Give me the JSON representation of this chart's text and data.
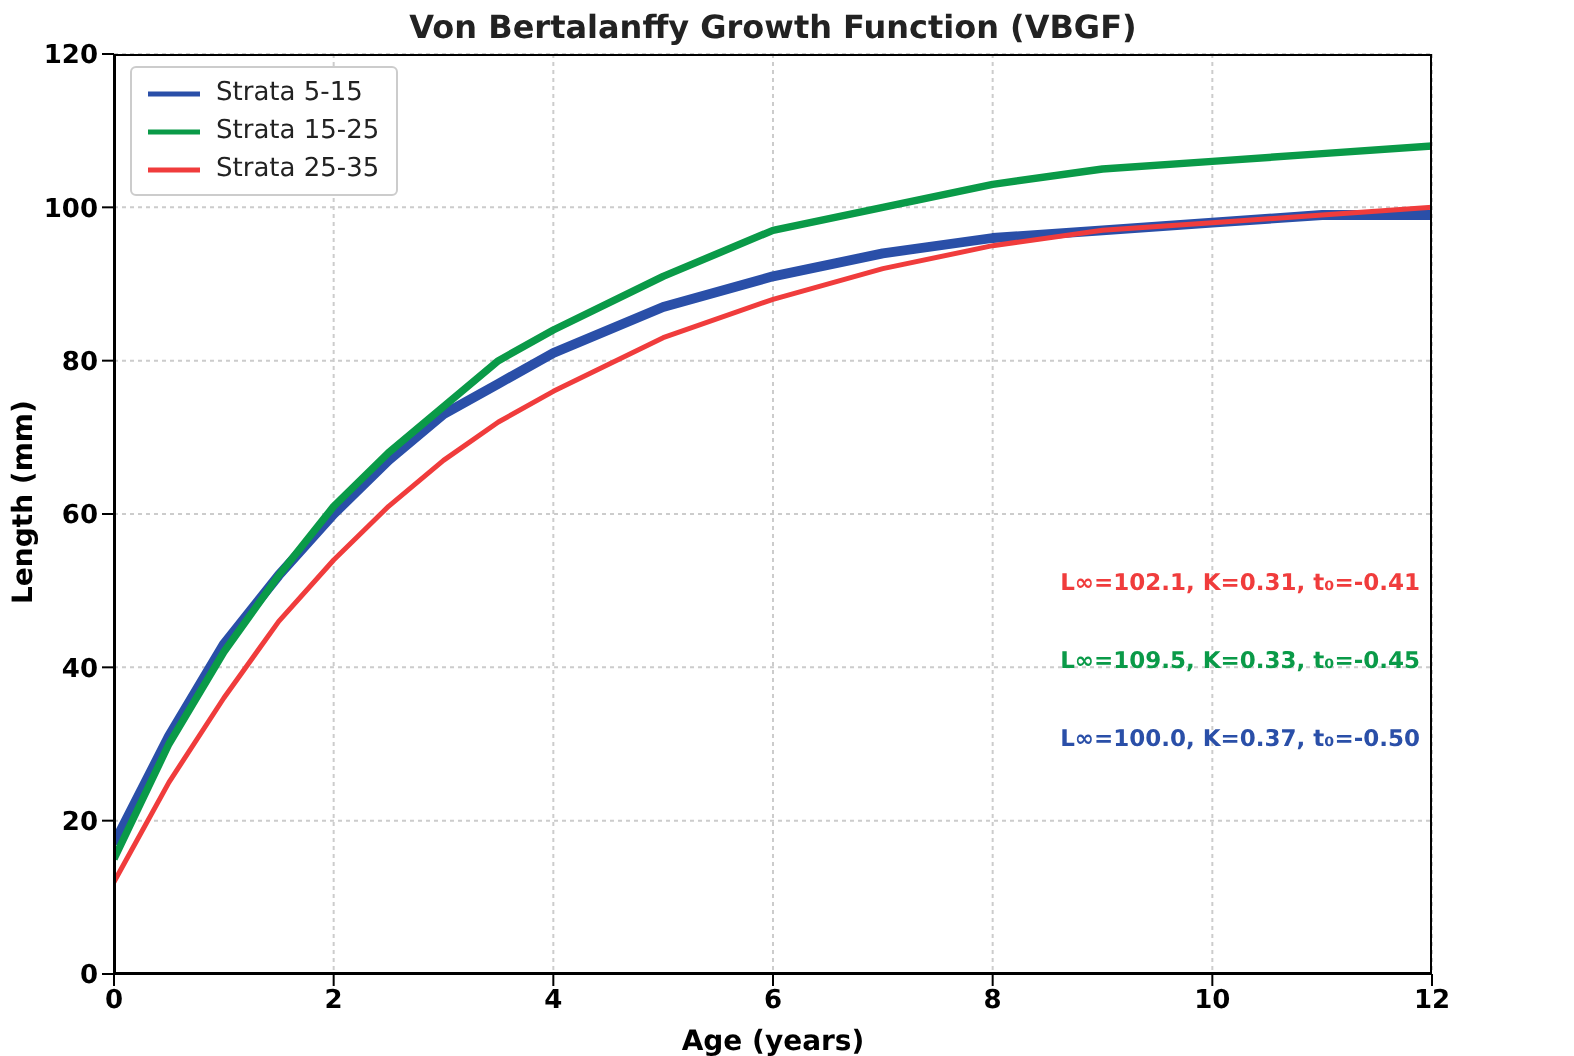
{
  "chart_data": {
    "type": "line",
    "title": "Von Bertalanffy Growth Function (VBGF)",
    "xlabel": "Age (years)",
    "ylabel": "Length (mm)",
    "x": [
      0,
      0.5,
      1,
      1.5,
      2,
      2.5,
      3,
      3.5,
      4,
      5,
      6,
      7,
      8,
      9,
      10,
      11,
      12
    ],
    "series": [
      {
        "name": "Strata 5-15",
        "color": "#2a4fa8",
        "values": [
          17,
          31,
          43,
          52,
          60,
          67,
          73,
          77,
          81,
          87,
          91,
          94,
          96,
          97,
          98,
          99,
          99
        ]
      },
      {
        "name": "Strata 15-25",
        "color": "#0a9a48",
        "values": [
          15,
          30,
          42,
          52,
          61,
          68,
          74,
          80,
          84,
          91,
          97,
          100,
          103,
          105,
          106,
          107,
          108
        ]
      },
      {
        "name": "Strata 25-35",
        "color": "#f03c3c",
        "values": [
          12,
          25,
          36,
          46,
          54,
          61,
          67,
          72,
          76,
          83,
          88,
          92,
          95,
          97,
          98,
          99,
          100
        ]
      }
    ],
    "xlim": [
      0,
      12
    ],
    "xticks": [
      0,
      2,
      4,
      6,
      8,
      10,
      12
    ],
    "ylim": [
      0,
      120
    ],
    "yticks": [
      0,
      20,
      40,
      60,
      80,
      100,
      120
    ],
    "grid": true,
    "legend": "top left",
    "marker": "none",
    "line_style": "solid",
    "annotations": [
      "L∞=102.1, K=0.31, t₀=-0.41",
      "L∞=109.5, K=0.33, t₀=-0.45",
      "L∞=100.0, K=0.37, t₀=-0.50"
    ]
  }
}
